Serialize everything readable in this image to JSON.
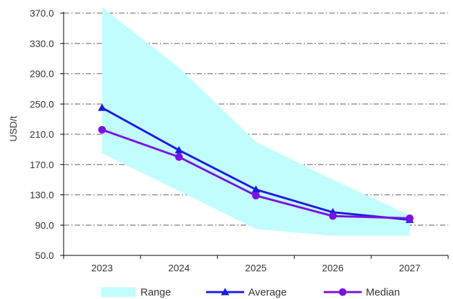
{
  "chart_data": {
    "type": "line",
    "categories": [
      "2023",
      "2024",
      "2025",
      "2026",
      "2027"
    ],
    "ylabel": "USD/t",
    "xlabel": "",
    "ylim": [
      50,
      370
    ],
    "yticks": [
      "50.0",
      "90.0",
      "130.0",
      "170.0",
      "210.0",
      "250.0",
      "290.0",
      "330.0",
      "370.0"
    ],
    "grid": "horizontal dashed",
    "legend_position": "bottom",
    "range": {
      "name": "Range",
      "low": [
        185,
        135,
        85,
        76,
        76
      ],
      "high": [
        378,
        298,
        200,
        150,
        103
      ],
      "color": "#c2fdfd"
    },
    "series": [
      {
        "name": "Average",
        "values": [
          245,
          189,
          137,
          107,
          97
        ],
        "color": "#1a1ae6",
        "marker": "triangle"
      },
      {
        "name": "Median",
        "values": [
          216,
          180,
          129,
          102,
          99
        ],
        "color": "#7a12e0",
        "marker": "circle"
      }
    ]
  }
}
